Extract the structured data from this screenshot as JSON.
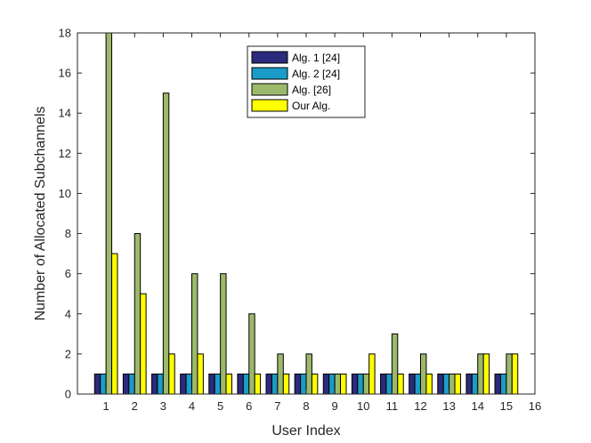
{
  "chart_data": {
    "type": "bar",
    "title": "",
    "xlabel": "User Index",
    "ylabel": "Number of Allocated Subchannels",
    "xlim": [
      0,
      16
    ],
    "ylim": [
      0,
      18
    ],
    "x_ticks": [
      1,
      2,
      3,
      4,
      5,
      6,
      7,
      8,
      9,
      10,
      11,
      12,
      13,
      14,
      15,
      16
    ],
    "y_ticks": [
      0,
      2,
      4,
      6,
      8,
      10,
      12,
      14,
      16,
      18
    ],
    "categories": [
      1,
      2,
      3,
      4,
      5,
      6,
      7,
      8,
      9,
      10,
      11,
      12,
      13,
      14,
      15
    ],
    "legend_position": "top-center",
    "grid": false,
    "series": [
      {
        "name": "Alg. 1 [24]",
        "color": "#2b2a7c",
        "values": [
          1,
          1,
          1,
          1,
          1,
          1,
          1,
          1,
          1,
          1,
          1,
          1,
          1,
          1,
          1
        ]
      },
      {
        "name": "Alg. 2 [24]",
        "color": "#1a9bc8",
        "values": [
          1,
          1,
          1,
          1,
          1,
          1,
          1,
          1,
          1,
          1,
          1,
          1,
          1,
          1,
          1
        ]
      },
      {
        "name": "Alg. [26]",
        "color": "#9cb96b",
        "values": [
          18,
          8,
          15,
          6,
          6,
          4,
          2,
          2,
          1,
          1,
          3,
          2,
          1,
          2,
          2
        ]
      },
      {
        "name": "Our Alg.",
        "color": "#ffff00",
        "values": [
          7,
          5,
          2,
          2,
          1,
          1,
          1,
          1,
          1,
          2,
          1,
          1,
          1,
          2,
          2
        ]
      }
    ]
  }
}
